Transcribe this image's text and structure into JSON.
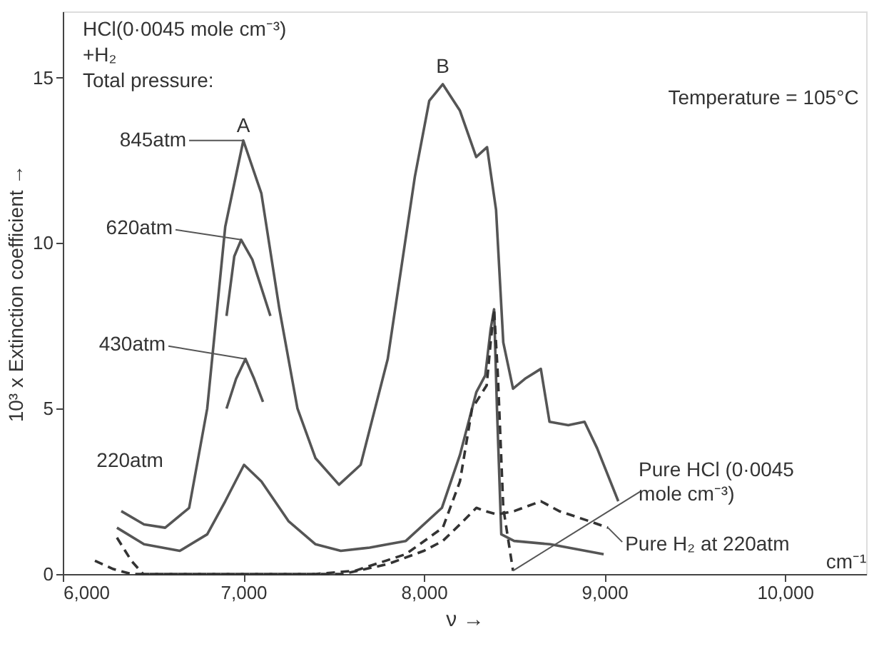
{
  "chart_data": {
    "type": "line",
    "xlabel": "ν →",
    "ylabel": "10³ x Extinction coefficient →",
    "xlim": [
      6000,
      10450
    ],
    "ylim": [
      0,
      17
    ],
    "xticks": [
      {
        "value": 6000,
        "label": "6,000"
      },
      {
        "value": 7000,
        "label": "7,000"
      },
      {
        "value": 8000,
        "label": "8,000"
      },
      {
        "value": 9000,
        "label": "9,000"
      },
      {
        "value": 10000,
        "label": "10,000"
      }
    ],
    "yticks": [
      0,
      5,
      10,
      15
    ],
    "grid": false,
    "series": [
      {
        "color": "#555555",
        "line_style": "solid",
        "x": [
          6324,
          6450,
          6567,
          6700,
          6800,
          6900,
          7000,
          7100,
          7200,
          7300,
          7400,
          7530,
          7650,
          7800,
          7950,
          8030,
          8105,
          8200,
          8290,
          8350,
          8400,
          8440,
          8494,
          8560,
          8648,
          8696,
          8800,
          8890,
          8960,
          9077
        ],
        "values": [
          1.9,
          1.5,
          1.4,
          2.0,
          5.0,
          10.5,
          13.1,
          11.5,
          8.0,
          5.0,
          3.5,
          2.7,
          3.3,
          6.5,
          12.0,
          14.3,
          14.8,
          14.0,
          12.6,
          12.9,
          11.0,
          7.0,
          5.6,
          5.9,
          6.2,
          4.6,
          4.5,
          4.6,
          3.8,
          2.2
        ]
      },
      {
        "color": "#555555",
        "line_style": "solid",
        "x": [
          6907,
          6950,
          6988,
          7050,
          7150
        ],
        "values": [
          7.8,
          9.6,
          10.1,
          9.5,
          7.8
        ]
      },
      {
        "color": "#555555",
        "line_style": "solid",
        "x": [
          6907,
          6960,
          7012,
          7060,
          7109
        ],
        "values": [
          5.0,
          5.9,
          6.5,
          5.9,
          5.2
        ]
      },
      {
        "color": "#555555",
        "line_style": "solid",
        "x": [
          6300,
          6450,
          6648,
          6800,
          6900,
          7004,
          7100,
          7250,
          7400,
          7540,
          7700,
          7900,
          8100,
          8200,
          8291,
          8340,
          8370,
          8389,
          8405,
          8429,
          8500,
          8700,
          8996
        ],
        "values": [
          1.4,
          0.9,
          0.7,
          1.2,
          2.2,
          3.3,
          2.8,
          1.6,
          0.9,
          0.7,
          0.8,
          1.0,
          2.0,
          3.6,
          5.5,
          6.0,
          7.4,
          8.0,
          5.0,
          1.2,
          1.0,
          0.9,
          0.6
        ]
      },
      {
        "color": "#333333",
        "line_style": "dashed",
        "x": [
          6300,
          6380,
          6445,
          6700,
          7000,
          7400,
          7620,
          7900,
          8105,
          8200,
          8267,
          8348,
          8370,
          8389,
          8410,
          8440,
          8494
        ],
        "values": [
          1.1,
          0.4,
          0.0,
          0.0,
          0.0,
          0.0,
          0.1,
          0.6,
          1.4,
          2.8,
          5.0,
          5.7,
          7.0,
          8.0,
          6.0,
          2.0,
          0.1
        ]
      },
      {
        "color": "#333333",
        "line_style": "dashed",
        "x": [
          6178,
          6280,
          6380,
          6700,
          7000,
          7300,
          7550,
          7800,
          8000,
          8105,
          8200,
          8291,
          8340,
          8405,
          8500,
          8648,
          8750,
          8915,
          9020
        ],
        "values": [
          0.4,
          0.15,
          0.0,
          0.0,
          0.0,
          0.0,
          0.0,
          0.3,
          0.7,
          1.0,
          1.5,
          2.0,
          1.9,
          1.8,
          1.9,
          2.2,
          1.9,
          1.6,
          1.4
        ]
      }
    ],
    "annotations": [
      "HCl(0·0045 mole cm⁻³)\n        +H₂\nTotal pressure:",
      "Temperature = 105°C",
      "cm⁻¹",
      {
        "text": "A",
        "x": 7000,
        "y": 13.1
      },
      {
        "text": "B",
        "x": 8105,
        "y": 14.8
      },
      {
        "text": "845atm",
        "x": 7000,
        "y": 13.1
      },
      {
        "text": "620atm",
        "x": 6988,
        "y": 10.1
      },
      {
        "text": "430atm",
        "x": 7012,
        "y": 6.5
      },
      "220atm",
      {
        "text": "Pure HCl (0·0045\n   mole cm⁻³)",
        "x": 8494,
        "y": 0.1
      },
      {
        "text": "Pure H₂ at 220atm",
        "x": 9020,
        "y": 1.4
      }
    ]
  }
}
